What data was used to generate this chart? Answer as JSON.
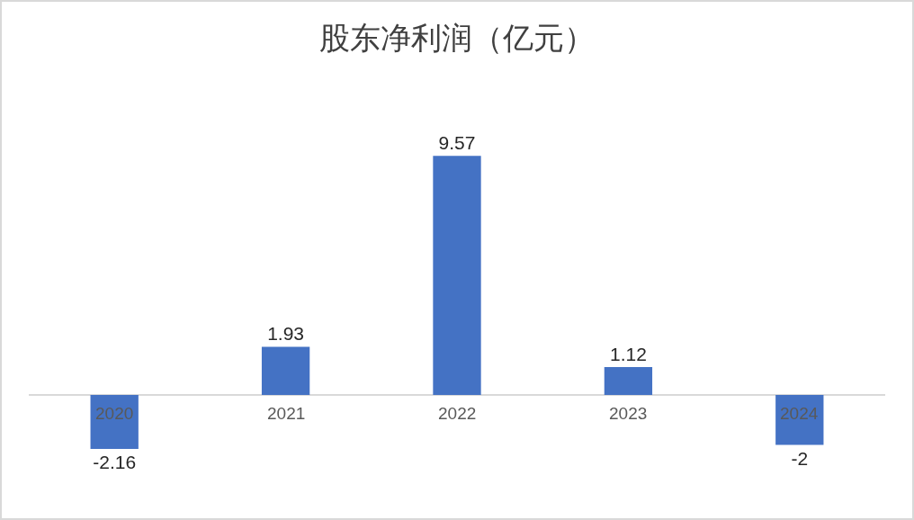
{
  "chart_data": {
    "type": "bar",
    "title": "股东净利润（亿元）",
    "categories": [
      "2020",
      "2021",
      "2022",
      "2023",
      "2024"
    ],
    "values": [
      -2.16,
      1.93,
      9.57,
      1.12,
      -2
    ],
    "color": "#4472c4",
    "data_labels": true
  }
}
